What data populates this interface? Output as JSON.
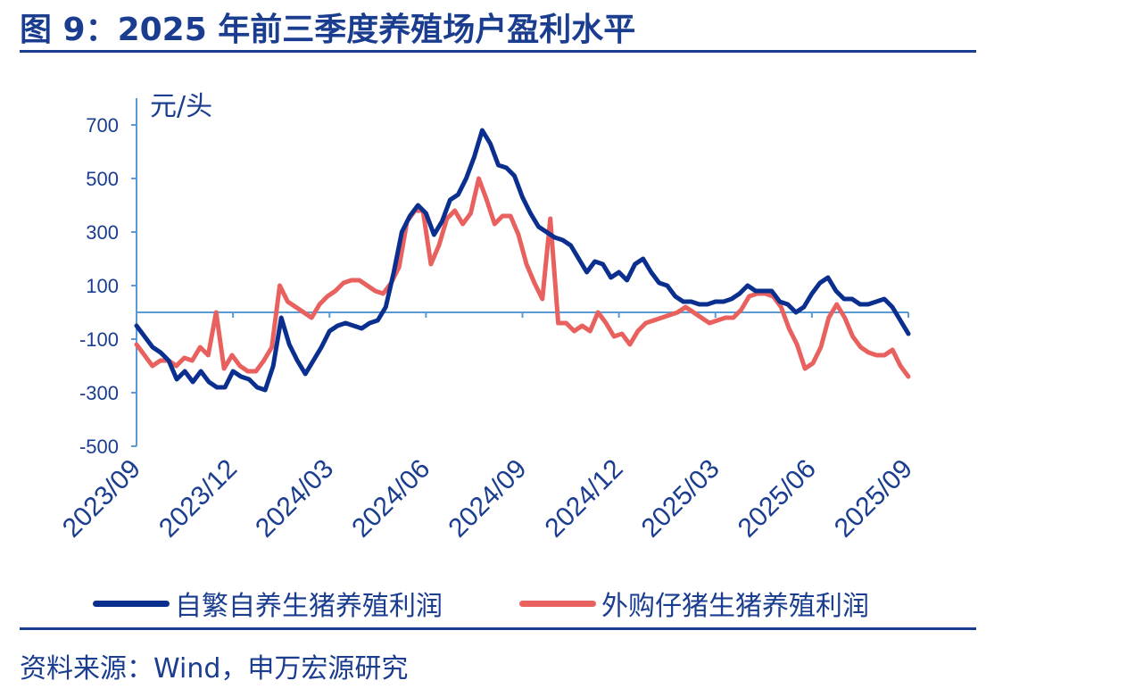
{
  "title": "图 9：2025 年前三季度养殖场户盈利水平",
  "source": "资料来源：Wind，申万宏源研究",
  "colors": {
    "accent": "#1a3d8f",
    "series_1": "#0b2f8f",
    "series_2": "#e8615f",
    "axis": "#5b9bd5"
  },
  "chart_data": {
    "type": "line",
    "ylabel": "元/头",
    "xlabel": "",
    "ylim": [
      -500,
      700
    ],
    "yticks": [
      700,
      500,
      300,
      100,
      -100,
      -300,
      -500
    ],
    "xticks": [
      "2023/09",
      "2023/12",
      "2024/03",
      "2024/06",
      "2024/09",
      "2024/12",
      "2025/03",
      "2025/06",
      "2025/09"
    ],
    "legend": "bottom",
    "grid": false,
    "series": [
      {
        "name": "自繁自养生猪养殖利润",
        "values": [
          -50,
          -90,
          -130,
          -150,
          -180,
          -250,
          -220,
          -260,
          -220,
          -260,
          -280,
          -280,
          -220,
          -240,
          -250,
          -280,
          -290,
          -200,
          -20,
          -120,
          -180,
          -230,
          -180,
          -130,
          -70,
          -50,
          -40,
          -50,
          -60,
          -40,
          -30,
          20,
          150,
          300,
          360,
          400,
          370,
          290,
          340,
          420,
          440,
          500,
          580,
          680,
          630,
          550,
          540,
          510,
          430,
          370,
          320,
          300,
          280,
          270,
          250,
          200,
          150,
          190,
          180,
          130,
          150,
          120,
          180,
          200,
          150,
          110,
          100,
          60,
          40,
          40,
          30,
          30,
          40,
          40,
          50,
          70,
          100,
          80,
          80,
          80,
          40,
          30,
          0,
          20,
          70,
          110,
          130,
          80,
          50,
          50,
          30,
          30,
          40,
          50,
          20,
          -30,
          -80
        ]
      },
      {
        "name": "外购仔猪生猪养殖利润",
        "values": [
          -120,
          -160,
          -200,
          -180,
          -180,
          -200,
          -170,
          -180,
          -130,
          -160,
          0,
          -210,
          -160,
          -200,
          -220,
          -220,
          -180,
          -130,
          100,
          40,
          20,
          0,
          -20,
          30,
          60,
          80,
          110,
          120,
          120,
          100,
          80,
          70,
          110,
          170,
          340,
          380,
          380,
          180,
          250,
          350,
          380,
          330,
          370,
          500,
          420,
          330,
          360,
          360,
          290,
          180,
          110,
          50,
          350,
          -40,
          -40,
          -70,
          -50,
          -70,
          0,
          -40,
          -90,
          -80,
          -120,
          -70,
          -40,
          -30,
          -20,
          -10,
          0,
          20,
          0,
          -20,
          -40,
          -30,
          -20,
          -20,
          10,
          60,
          70,
          70,
          60,
          20,
          -60,
          -120,
          -210,
          -190,
          -130,
          -20,
          30,
          -20,
          -90,
          -130,
          -150,
          -160,
          -160,
          -140,
          -200,
          -240
        ]
      }
    ]
  }
}
